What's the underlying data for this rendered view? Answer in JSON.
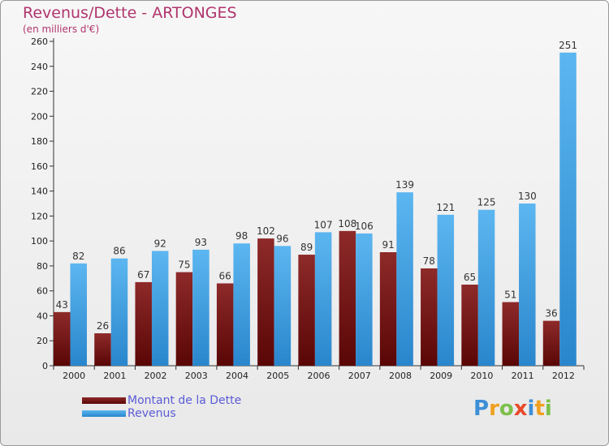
{
  "title": "Revenus/Dette - ARTONGES",
  "subtitle": "(en milliers d'€)",
  "brand": "Proxiti",
  "colors": {
    "dette": "#7a1414",
    "revenus": "#3e9fe2",
    "title": "#b0356d",
    "legend_text": "#5b5bd6"
  },
  "chart_data": {
    "type": "bar",
    "title": "Revenus/Dette - ARTONGES",
    "subtitle": "(en milliers d'€)",
    "categories": [
      "2000",
      "2001",
      "2002",
      "2003",
      "2004",
      "2005",
      "2006",
      "2007",
      "2008",
      "2009",
      "2010",
      "2011",
      "2012"
    ],
    "series": [
      {
        "name": "Montant de la Dette",
        "values": [
          43,
          26,
          67,
          75,
          66,
          102,
          89,
          108,
          91,
          78,
          65,
          51,
          36
        ]
      },
      {
        "name": "Revenus",
        "values": [
          82,
          86,
          92,
          93,
          98,
          96,
          107,
          106,
          139,
          121,
          125,
          130,
          251
        ]
      }
    ],
    "ylim": [
      0,
      260
    ],
    "yticks": [
      0,
      20,
      40,
      60,
      80,
      100,
      120,
      140,
      160,
      180,
      200,
      220,
      240,
      260
    ],
    "grid": false,
    "legend": "bottom-left"
  }
}
